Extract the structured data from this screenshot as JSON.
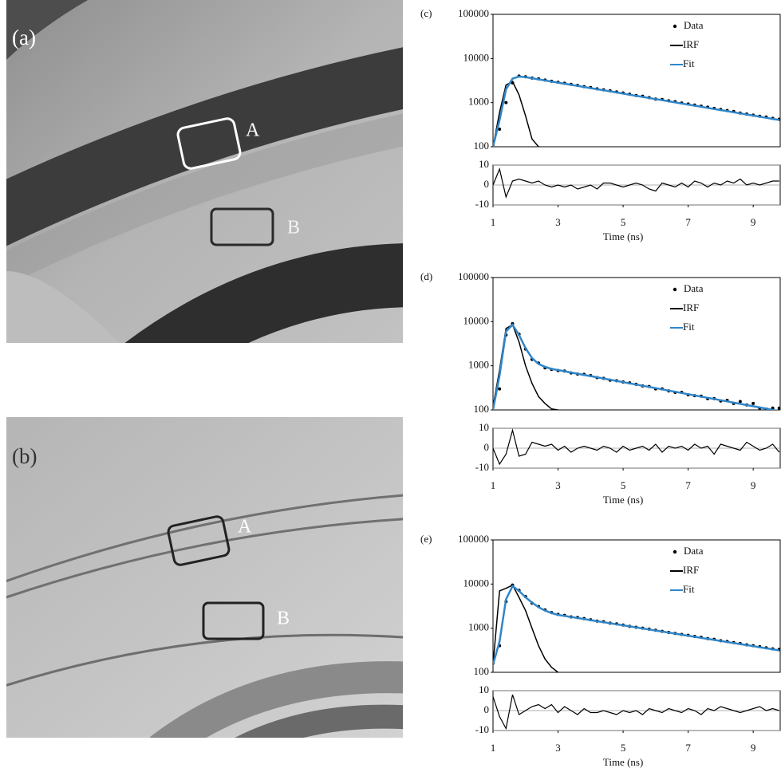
{
  "images": [
    {
      "label": "(a)",
      "regions": [
        {
          "label": "A"
        },
        {
          "label": "B"
        }
      ]
    },
    {
      "label": "(b)",
      "regions": [
        {
          "label": "A"
        },
        {
          "label": "B"
        }
      ]
    }
  ],
  "chart_data": [
    {
      "type": "decay",
      "label": "(c)",
      "xlabel": "Time (ns)",
      "log_y": true,
      "legend": "upper right",
      "x": [
        1,
        1.2,
        1.4,
        1.6,
        1.8,
        2,
        2.2,
        2.4,
        2.6,
        2.8,
        3,
        3.2,
        3.4,
        3.6,
        3.8,
        4,
        4.2,
        4.4,
        4.6,
        4.8,
        5,
        5.2,
        5.4,
        5.6,
        5.8,
        6,
        6.2,
        6.4,
        6.6,
        6.8,
        7,
        7.2,
        7.4,
        7.6,
        7.8,
        8,
        8.2,
        8.4,
        8.6,
        8.8,
        9,
        9.2,
        9.4,
        9.6,
        9.8
      ],
      "xlim": [
        1,
        9.83
      ],
      "xticks": [
        1,
        3,
        5,
        7,
        9
      ],
      "ylim": [
        100,
        100000
      ],
      "yticks": [
        100,
        1000,
        10000,
        100000
      ],
      "series": [
        {
          "name": "Data",
          "style": "markers",
          "color": "#000000",
          "values": [
            110,
            250,
            1000,
            2800,
            4000,
            3850,
            3600,
            3450,
            3250,
            3050,
            2900,
            2750,
            2600,
            2450,
            2300,
            2200,
            2050,
            1950,
            1850,
            1750,
            1650,
            1550,
            1450,
            1400,
            1300,
            1200,
            1180,
            1100,
            1050,
            980,
            930,
            880,
            830,
            790,
            740,
            700,
            660,
            630,
            580,
            550,
            520,
            490,
            470,
            440,
            420
          ]
        },
        {
          "name": "IRF",
          "style": "line",
          "color": "#000000",
          "values": [
            100,
            600,
            2500,
            3000,
            1500,
            500,
            150,
            100,
            null,
            null,
            null,
            null,
            null,
            null,
            null,
            null,
            null,
            null,
            null,
            null,
            null,
            null,
            null,
            null,
            null,
            null,
            null,
            null,
            null,
            null,
            null,
            null,
            null,
            null,
            null,
            null,
            null,
            null,
            null,
            null,
            null,
            null,
            null,
            null,
            null
          ]
        },
        {
          "name": "Fit",
          "style": "line",
          "color": "#2f86c9",
          "values": [
            100,
            400,
            2000,
            3500,
            3900,
            3780,
            3570,
            3370,
            3180,
            3000,
            2840,
            2680,
            2530,
            2390,
            2260,
            2130,
            2010,
            1900,
            1800,
            1700,
            1600,
            1510,
            1430,
            1350,
            1270,
            1200,
            1140,
            1070,
            1010,
            955,
            902,
            852,
            804,
            759,
            717,
            677,
            639,
            604,
            570,
            538,
            508,
            480,
            453,
            428,
            404
          ]
        }
      ],
      "residual": {
        "color": "#000000",
        "ylim": [
          -10,
          10
        ],
        "yticks": [
          -10,
          0,
          10
        ],
        "values": [
          0,
          8,
          -6,
          2,
          3,
          2,
          1,
          2,
          0,
          -1,
          0,
          -1,
          0,
          -2,
          -1,
          0,
          -2,
          1,
          1,
          0,
          -1,
          0,
          1,
          0,
          -2,
          -3,
          1,
          0,
          -1,
          1,
          -1,
          2,
          1,
          -1,
          1,
          0,
          2,
          1,
          3,
          0,
          1,
          0,
          1,
          2,
          2
        ]
      }
    },
    {
      "type": "decay",
      "label": "(d)",
      "xlabel": "Time (ns)",
      "log_y": true,
      "legend": "upper right",
      "x": [
        1,
        1.2,
        1.4,
        1.6,
        1.8,
        2,
        2.2,
        2.4,
        2.6,
        2.8,
        3,
        3.2,
        3.4,
        3.6,
        3.8,
        4,
        4.2,
        4.4,
        4.6,
        4.8,
        5,
        5.2,
        5.4,
        5.6,
        5.8,
        6,
        6.2,
        6.4,
        6.6,
        6.8,
        7,
        7.2,
        7.4,
        7.6,
        7.8,
        8,
        8.2,
        8.4,
        8.6,
        8.8,
        9,
        9.2,
        9.4,
        9.6,
        9.8
      ],
      "xlim": [
        1,
        9.83
      ],
      "xticks": [
        1,
        3,
        5,
        7,
        9
      ],
      "ylim": [
        100,
        100000
      ],
      "yticks": [
        100,
        1000,
        10000,
        100000
      ],
      "series": [
        {
          "name": "Data",
          "style": "markers",
          "color": "#000000",
          "values": [
            130,
            300,
            5000,
            9000,
            5200,
            2400,
            1400,
            1150,
            900,
            830,
            780,
            760,
            690,
            650,
            640,
            600,
            540,
            520,
            470,
            460,
            430,
            410,
            380,
            350,
            340,
            300,
            300,
            270,
            250,
            250,
            220,
            210,
            205,
            180,
            180,
            160,
            165,
            140,
            155,
            130,
            140,
            110,
            105,
            110,
            110
          ]
        },
        {
          "name": "IRF",
          "style": "line",
          "color": "#000000",
          "values": [
            120,
            800,
            7000,
            8500,
            3500,
            1000,
            400,
            200,
            140,
            105,
            100,
            null,
            null,
            null,
            null,
            null,
            null,
            null,
            null,
            null,
            null,
            null,
            null,
            null,
            null,
            null,
            null,
            null,
            null,
            null,
            null,
            null,
            null,
            null,
            null,
            null,
            null,
            null,
            null,
            null,
            null,
            null,
            null,
            null,
            null
          ]
        },
        {
          "name": "Fit",
          "style": "line",
          "color": "#2f86c9",
          "values": [
            100,
            600,
            6000,
            8500,
            5000,
            2500,
            1500,
            1100,
            950,
            850,
            800,
            751,
            705,
            662,
            622,
            584,
            548,
            515,
            483,
            454,
            426,
            400,
            376,
            353,
            331,
            311,
            292,
            274,
            258,
            242,
            227,
            213,
            200,
            188,
            177,
            166,
            156,
            146,
            137,
            129,
            121,
            114,
            107,
            100,
            94
          ]
        }
      ],
      "residual": {
        "color": "#000000",
        "ylim": [
          -10,
          10
        ],
        "yticks": [
          -10,
          0,
          10
        ],
        "values": [
          0,
          -8,
          -3,
          9,
          -4,
          -3,
          3,
          2,
          1,
          2,
          -1,
          1,
          -2,
          0,
          1,
          0,
          -1,
          1,
          0,
          -2,
          1,
          -1,
          0,
          1,
          -1,
          2,
          -2,
          1,
          0,
          1,
          -1,
          2,
          0,
          1,
          -3,
          2,
          1,
          0,
          -1,
          3,
          1,
          -1,
          0,
          2,
          -2
        ]
      }
    },
    {
      "type": "decay",
      "label": "(e)",
      "xlabel": "Time (ns)",
      "log_y": true,
      "legend": "upper right",
      "x": [
        1,
        1.2,
        1.4,
        1.6,
        1.8,
        2,
        2.2,
        2.4,
        2.6,
        2.8,
        3,
        3.2,
        3.4,
        3.6,
        3.8,
        4,
        4.2,
        4.4,
        4.6,
        4.8,
        5,
        5.2,
        5.4,
        5.6,
        5.8,
        6,
        6.2,
        6.4,
        6.6,
        6.8,
        7,
        7.2,
        7.4,
        7.6,
        7.8,
        8,
        8.2,
        8.4,
        8.6,
        8.8,
        9,
        9.2,
        9.4,
        9.6,
        9.8
      ],
      "xlim": [
        1,
        9.83
      ],
      "xticks": [
        1,
        3,
        5,
        7,
        9
      ],
      "ylim": [
        100,
        100000
      ],
      "yticks": [
        100,
        1000,
        10000,
        100000
      ],
      "series": [
        {
          "name": "Data",
          "style": "markers",
          "color": "#000000",
          "values": [
            160,
            400,
            4000,
            9500,
            7200,
            5200,
            3700,
            3100,
            2600,
            2250,
            2050,
            1950,
            1800,
            1750,
            1650,
            1550,
            1450,
            1400,
            1300,
            1250,
            1180,
            1100,
            1050,
            1000,
            950,
            900,
            850,
            800,
            760,
            720,
            690,
            650,
            620,
            580,
            560,
            520,
            500,
            470,
            450,
            420,
            400,
            380,
            360,
            340,
            330
          ]
        },
        {
          "name": "IRF",
          "style": "line",
          "color": "#000000",
          "values": [
            150,
            7000,
            8000,
            9500,
            5000,
            2500,
            1000,
            400,
            200,
            130,
            100,
            null,
            null,
            null,
            null,
            null,
            null,
            null,
            null,
            null,
            null,
            null,
            null,
            null,
            null,
            null,
            null,
            null,
            null,
            null,
            null,
            null,
            null,
            null,
            null,
            null,
            null,
            null,
            null,
            null,
            null,
            null,
            null,
            null,
            null
          ]
        },
        {
          "name": "Fit",
          "style": "line",
          "color": "#2f86c9",
          "values": [
            150,
            500,
            4500,
            9000,
            7000,
            5000,
            3800,
            3000,
            2500,
            2200,
            2000,
            1894,
            1794,
            1699,
            1609,
            1523,
            1443,
            1366,
            1294,
            1225,
            1160,
            1099,
            1041,
            986,
            933,
            884,
            837,
            793,
            751,
            711,
            673,
            638,
            604,
            572,
            542,
            513,
            486,
            460,
            436,
            413,
            391,
            370,
            350,
            332,
            314
          ]
        }
      ],
      "residual": {
        "color": "#000000",
        "ylim": [
          -10,
          10
        ],
        "yticks": [
          -10,
          0,
          10
        ],
        "values": [
          7,
          -3,
          -9,
          8,
          -2,
          0,
          2,
          3,
          1,
          3,
          -1,
          2,
          0,
          -2,
          1,
          -1,
          -1,
          0,
          -1,
          -2,
          0,
          -1,
          0,
          -2,
          1,
          0,
          -1,
          1,
          0,
          -1,
          1,
          0,
          -2,
          1,
          0,
          2,
          1,
          0,
          -1,
          0,
          1,
          2,
          0,
          1,
          0
        ]
      }
    }
  ]
}
